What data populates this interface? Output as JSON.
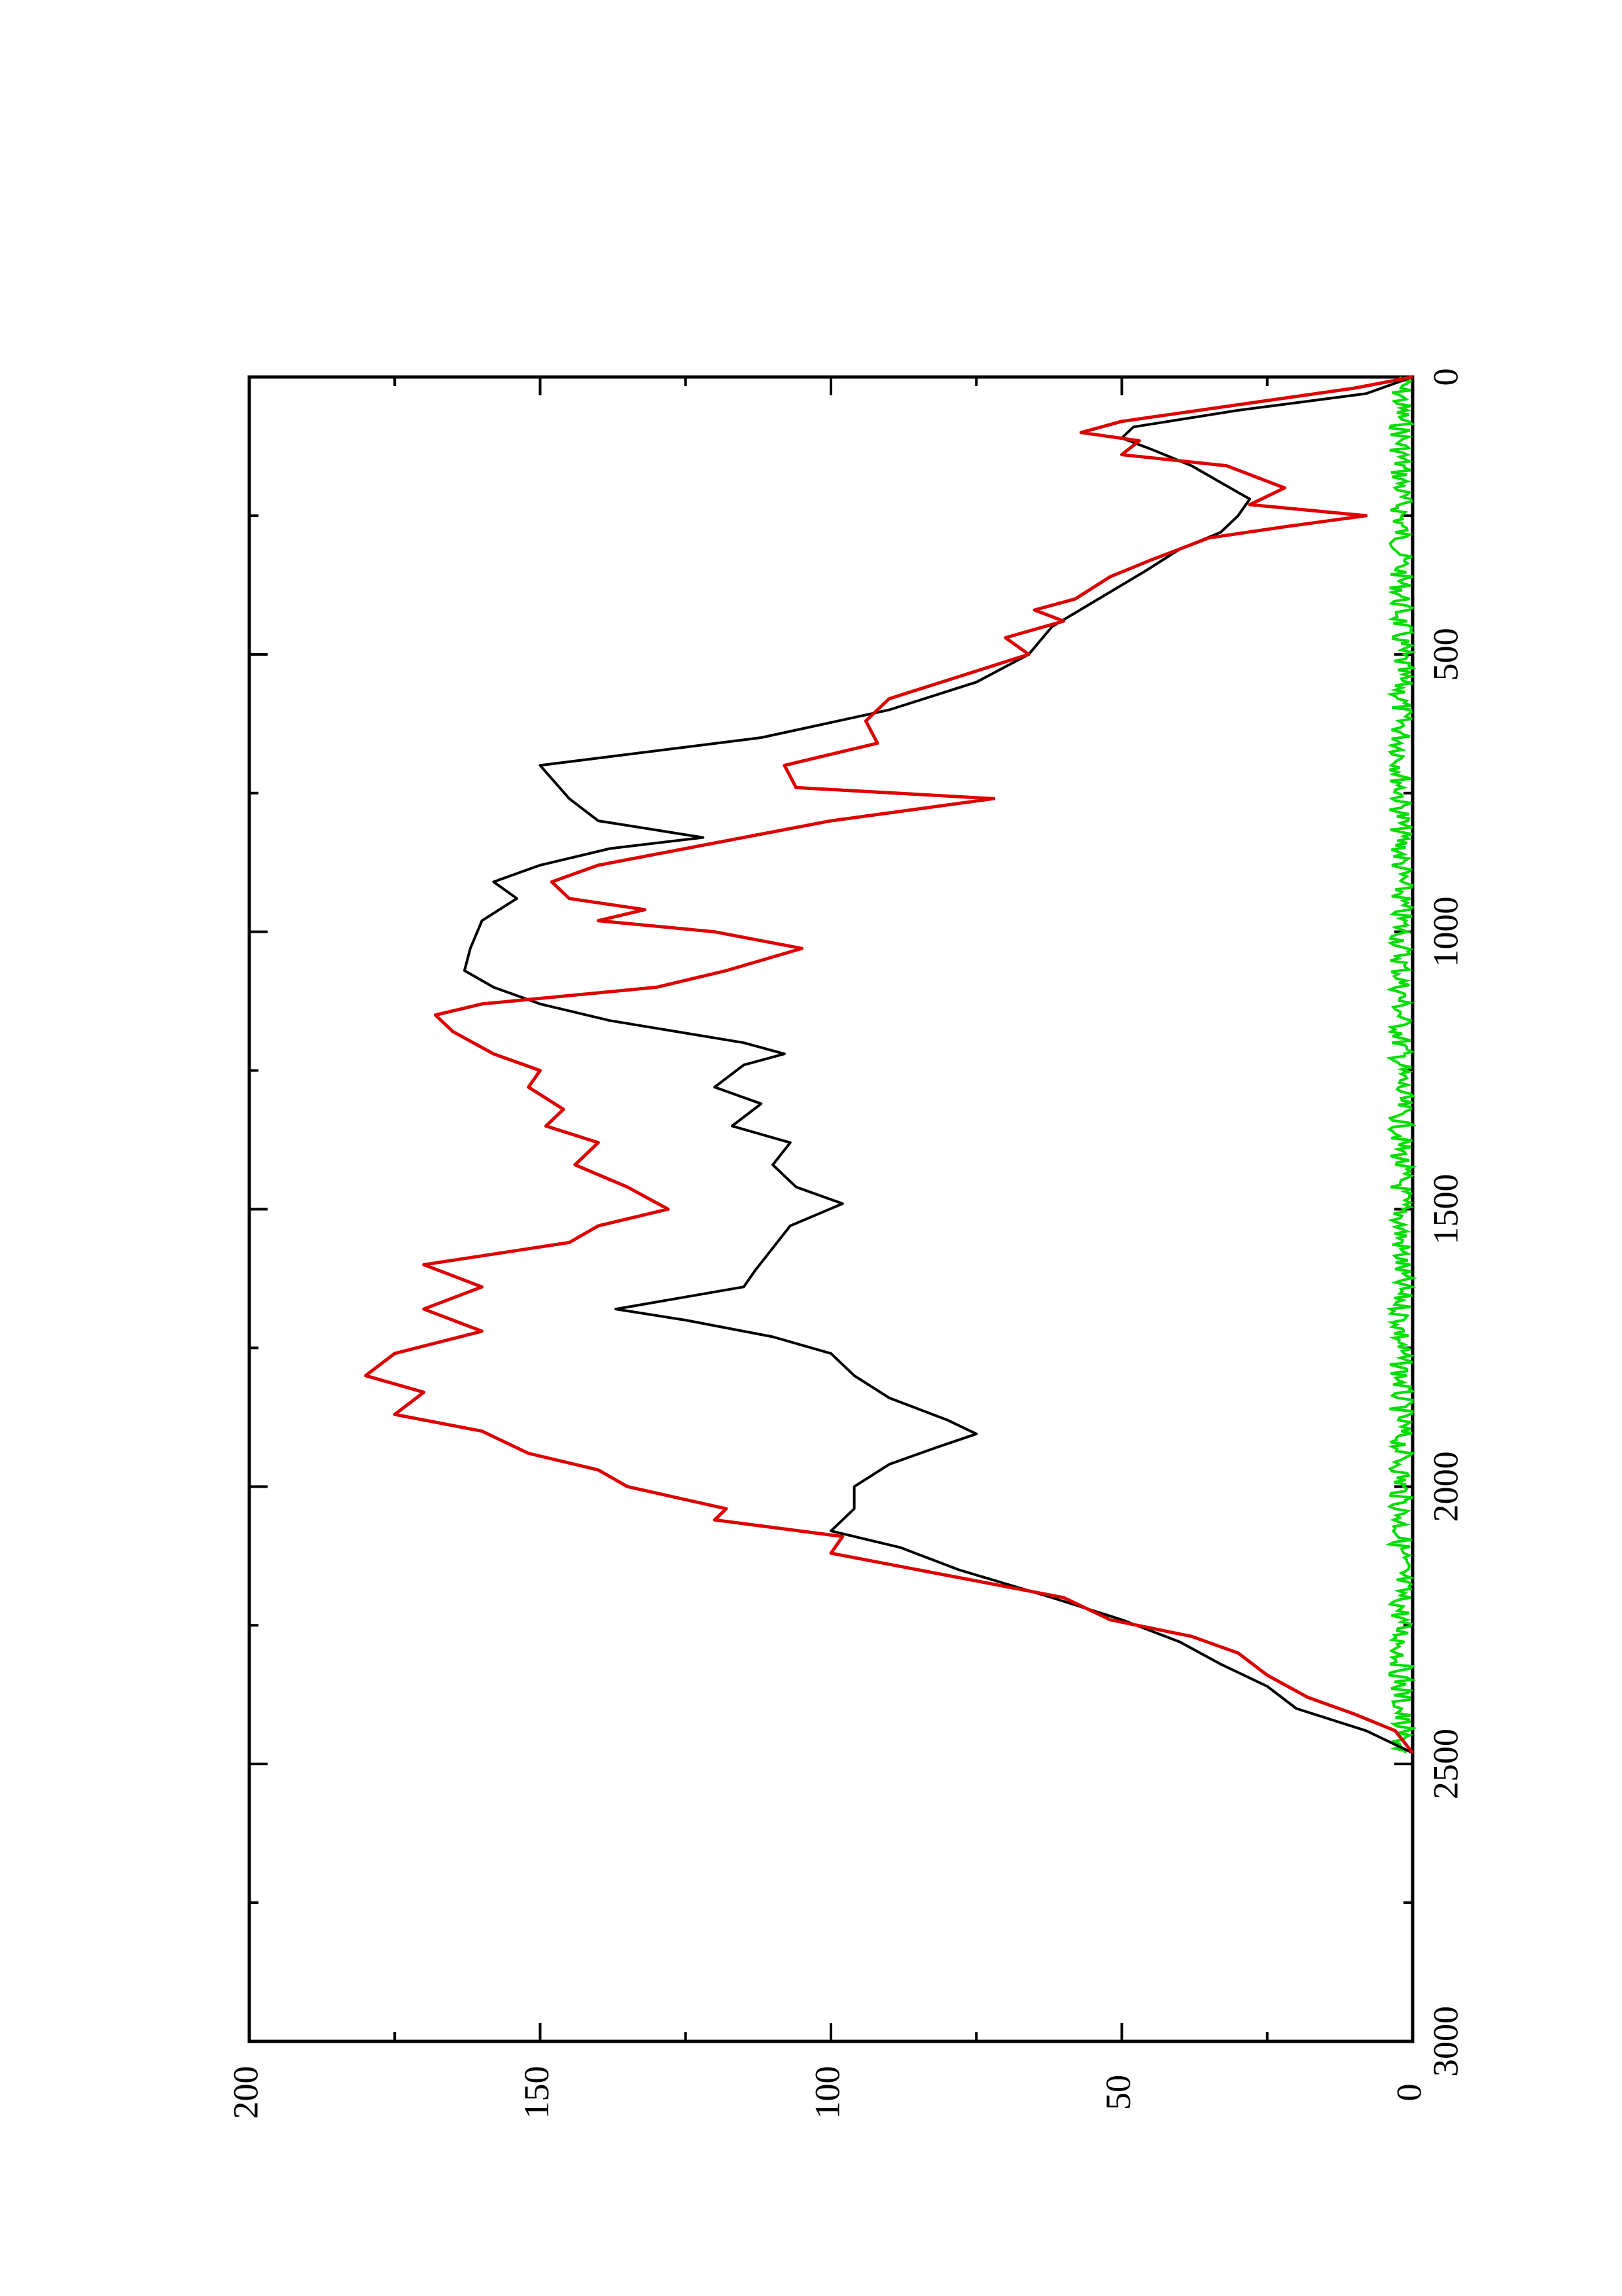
{
  "chart_data": {
    "type": "line",
    "orientation": "rotated-90-clockwise",
    "title": "",
    "xlabel": "",
    "ylabel": "",
    "xlim": [
      0,
      3000
    ],
    "ylim": [
      0,
      200
    ],
    "x_ticks": [
      0,
      500,
      1000,
      1500,
      2000,
      2500,
      3000
    ],
    "y_ticks": [
      0,
      50,
      100,
      150,
      200
    ],
    "x_tick_labels": [
      "0",
      "500",
      "1000",
      "1500",
      "2000",
      "2500",
      "3000"
    ],
    "y_tick_labels": [
      "0",
      "50",
      "100",
      "150",
      "200"
    ],
    "grid": false,
    "legend": "none",
    "series": [
      {
        "color": "#000000",
        "points": [
          [
            0,
            0
          ],
          [
            30,
            8
          ],
          [
            60,
            30
          ],
          [
            90,
            48
          ],
          [
            110,
            50
          ],
          [
            130,
            45
          ],
          [
            160,
            38
          ],
          [
            190,
            33
          ],
          [
            220,
            28
          ],
          [
            250,
            30
          ],
          [
            280,
            33
          ],
          [
            310,
            40
          ],
          [
            350,
            46
          ],
          [
            400,
            54
          ],
          [
            450,
            62
          ],
          [
            500,
            66
          ],
          [
            550,
            75
          ],
          [
            600,
            90
          ],
          [
            650,
            112
          ],
          [
            700,
            150
          ],
          [
            760,
            145
          ],
          [
            800,
            140
          ],
          [
            830,
            122
          ],
          [
            850,
            138
          ],
          [
            880,
            150
          ],
          [
            910,
            158
          ],
          [
            940,
            154
          ],
          [
            980,
            160
          ],
          [
            1030,
            162
          ],
          [
            1070,
            163
          ],
          [
            1100,
            158
          ],
          [
            1130,
            150
          ],
          [
            1160,
            138
          ],
          [
            1200,
            115
          ],
          [
            1220,
            108
          ],
          [
            1240,
            115
          ],
          [
            1280,
            120
          ],
          [
            1310,
            112
          ],
          [
            1350,
            117
          ],
          [
            1380,
            107
          ],
          [
            1420,
            110
          ],
          [
            1460,
            106
          ],
          [
            1490,
            98
          ],
          [
            1530,
            107
          ],
          [
            1570,
            110
          ],
          [
            1610,
            113
          ],
          [
            1640,
            115
          ],
          [
            1680,
            137
          ],
          [
            1700,
            125
          ],
          [
            1730,
            110
          ],
          [
            1760,
            100
          ],
          [
            1800,
            96
          ],
          [
            1840,
            90
          ],
          [
            1880,
            80
          ],
          [
            1905,
            75
          ],
          [
            1930,
            82
          ],
          [
            1960,
            90
          ],
          [
            2000,
            96
          ],
          [
            2040,
            96
          ],
          [
            2080,
            100
          ],
          [
            2110,
            88
          ],
          [
            2150,
            78
          ],
          [
            2200,
            62
          ],
          [
            2240,
            50
          ],
          [
            2280,
            40
          ],
          [
            2320,
            33
          ],
          [
            2360,
            25
          ],
          [
            2400,
            20
          ],
          [
            2440,
            8
          ],
          [
            2480,
            0
          ]
        ]
      },
      {
        "color": "#dd0000",
        "points": [
          [
            0,
            0
          ],
          [
            20,
            10
          ],
          [
            50,
            30
          ],
          [
            80,
            50
          ],
          [
            100,
            57
          ],
          [
            115,
            47
          ],
          [
            140,
            50
          ],
          [
            160,
            32
          ],
          [
            200,
            22
          ],
          [
            230,
            28
          ],
          [
            250,
            8
          ],
          [
            270,
            22
          ],
          [
            290,
            35
          ],
          [
            330,
            45
          ],
          [
            360,
            52
          ],
          [
            400,
            58
          ],
          [
            420,
            65
          ],
          [
            440,
            60
          ],
          [
            470,
            70
          ],
          [
            500,
            66
          ],
          [
            540,
            78
          ],
          [
            580,
            90
          ],
          [
            620,
            94
          ],
          [
            660,
            92
          ],
          [
            700,
            108
          ],
          [
            740,
            106
          ],
          [
            760,
            72
          ],
          [
            800,
            100
          ],
          [
            840,
            120
          ],
          [
            880,
            140
          ],
          [
            910,
            148
          ],
          [
            940,
            145
          ],
          [
            960,
            132
          ],
          [
            980,
            140
          ],
          [
            1000,
            120
          ],
          [
            1030,
            105
          ],
          [
            1070,
            118
          ],
          [
            1100,
            130
          ],
          [
            1130,
            160
          ],
          [
            1150,
            168
          ],
          [
            1180,
            165
          ],
          [
            1220,
            158
          ],
          [
            1250,
            150
          ],
          [
            1280,
            152
          ],
          [
            1320,
            146
          ],
          [
            1350,
            149
          ],
          [
            1380,
            140
          ],
          [
            1420,
            144
          ],
          [
            1460,
            135
          ],
          [
            1500,
            128
          ],
          [
            1530,
            140
          ],
          [
            1560,
            145
          ],
          [
            1600,
            170
          ],
          [
            1640,
            160
          ],
          [
            1680,
            170
          ],
          [
            1720,
            160
          ],
          [
            1760,
            175
          ],
          [
            1800,
            180
          ],
          [
            1830,
            170
          ],
          [
            1870,
            175
          ],
          [
            1900,
            160
          ],
          [
            1940,
            152
          ],
          [
            1970,
            140
          ],
          [
            2000,
            135
          ],
          [
            2040,
            118
          ],
          [
            2060,
            120
          ],
          [
            2090,
            98
          ],
          [
            2120,
            100
          ],
          [
            2160,
            80
          ],
          [
            2200,
            60
          ],
          [
            2240,
            52
          ],
          [
            2270,
            38
          ],
          [
            2300,
            30
          ],
          [
            2340,
            25
          ],
          [
            2380,
            18
          ],
          [
            2410,
            10
          ],
          [
            2440,
            3
          ],
          [
            2480,
            0
          ]
        ]
      },
      {
        "color": "#00dd00",
        "baseline": 2,
        "amplitude": 2,
        "x_range": [
          0,
          2480
        ]
      }
    ]
  }
}
